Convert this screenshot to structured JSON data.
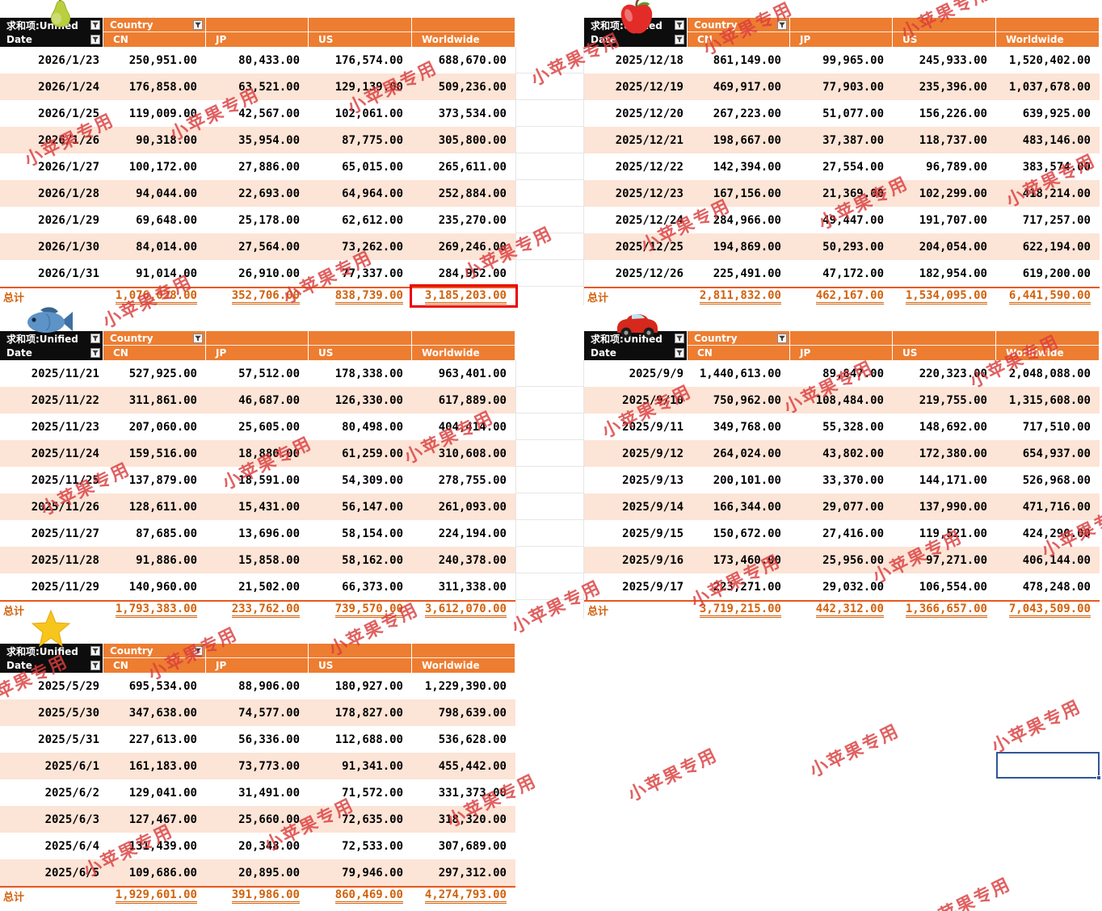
{
  "watermark": {
    "text": "小苹果专用",
    "color": "#DB3E3E"
  },
  "colors": {
    "header_orange": "#ED7D31",
    "header_black": "#0D0D0D",
    "row_band": "#FCE4D6",
    "total_text": "#D2620C",
    "highlight_box_border": "#EA0000",
    "active_cell_border": "#2F5597"
  },
  "pivot_header": {
    "value_field_label": "求和项:Unified",
    "row_field_label": "Date",
    "column_field_label": "Country",
    "columns": [
      "CN",
      "JP",
      "US",
      "Worldwide"
    ],
    "grand_total_label": "总计"
  },
  "tables": [
    {
      "icon": "pear",
      "rows": [
        {
          "date": "2026/1/23",
          "values": [
            "250,951.00",
            "80,433.00",
            "176,574.00",
            "688,670.00"
          ]
        },
        {
          "date": "2026/1/24",
          "values": [
            "176,858.00",
            "63,521.00",
            "129,139.00",
            "509,236.00"
          ]
        },
        {
          "date": "2026/1/25",
          "values": [
            "119,009.00",
            "42,567.00",
            "102,061.00",
            "373,534.00"
          ]
        },
        {
          "date": "2026/1/26",
          "values": [
            "90,318.00",
            "35,954.00",
            "87,775.00",
            "305,800.00"
          ]
        },
        {
          "date": "2026/1/27",
          "values": [
            "100,172.00",
            "27,886.00",
            "65,015.00",
            "265,611.00"
          ]
        },
        {
          "date": "2026/1/28",
          "values": [
            "94,044.00",
            "22,693.00",
            "64,964.00",
            "252,884.00"
          ]
        },
        {
          "date": "2026/1/29",
          "values": [
            "69,648.00",
            "25,178.00",
            "62,612.00",
            "235,270.00"
          ]
        },
        {
          "date": "2026/1/30",
          "values": [
            "84,014.00",
            "27,564.00",
            "73,262.00",
            "269,246.00"
          ]
        },
        {
          "date": "2026/1/31",
          "values": [
            "91,014.00",
            "26,910.00",
            "77,337.00",
            "284,952.00"
          ]
        }
      ],
      "totals": [
        "1,076,028.00",
        "352,706.00",
        "838,739.00",
        "3,185,203.00"
      ]
    },
    {
      "icon": "apple",
      "rows": [
        {
          "date": "2025/12/18",
          "values": [
            "861,149.00",
            "99,965.00",
            "245,933.00",
            "1,520,402.00"
          ]
        },
        {
          "date": "2025/12/19",
          "values": [
            "469,917.00",
            "77,903.00",
            "235,396.00",
            "1,037,678.00"
          ]
        },
        {
          "date": "2025/12/20",
          "values": [
            "267,223.00",
            "51,077.00",
            "156,226.00",
            "639,925.00"
          ]
        },
        {
          "date": "2025/12/21",
          "values": [
            "198,667.00",
            "37,387.00",
            "118,737.00",
            "483,146.00"
          ]
        },
        {
          "date": "2025/12/22",
          "values": [
            "142,394.00",
            "27,554.00",
            "96,789.00",
            "383,574.00"
          ]
        },
        {
          "date": "2025/12/23",
          "values": [
            "167,156.00",
            "21,369.00",
            "102,299.00",
            "418,214.00"
          ]
        },
        {
          "date": "2025/12/24",
          "values": [
            "284,966.00",
            "49,447.00",
            "191,707.00",
            "717,257.00"
          ]
        },
        {
          "date": "2025/12/25",
          "values": [
            "194,869.00",
            "50,293.00",
            "204,054.00",
            "622,194.00"
          ]
        },
        {
          "date": "2025/12/26",
          "values": [
            "225,491.00",
            "47,172.00",
            "182,954.00",
            "619,200.00"
          ]
        }
      ],
      "totals": [
        "2,811,832.00",
        "462,167.00",
        "1,534,095.00",
        "6,441,590.00"
      ]
    },
    {
      "icon": "fish",
      "rows": [
        {
          "date": "2025/11/21",
          "values": [
            "527,925.00",
            "57,512.00",
            "178,338.00",
            "963,401.00"
          ]
        },
        {
          "date": "2025/11/22",
          "values": [
            "311,861.00",
            "46,687.00",
            "126,330.00",
            "617,889.00"
          ]
        },
        {
          "date": "2025/11/23",
          "values": [
            "207,060.00",
            "25,605.00",
            "80,498.00",
            "404,414.00"
          ]
        },
        {
          "date": "2025/11/24",
          "values": [
            "159,516.00",
            "18,880.00",
            "61,259.00",
            "310,608.00"
          ]
        },
        {
          "date": "2025/11/25",
          "values": [
            "137,879.00",
            "18,591.00",
            "54,309.00",
            "278,755.00"
          ]
        },
        {
          "date": "2025/11/26",
          "values": [
            "128,611.00",
            "15,431.00",
            "56,147.00",
            "261,093.00"
          ]
        },
        {
          "date": "2025/11/27",
          "values": [
            "87,685.00",
            "13,696.00",
            "58,154.00",
            "224,194.00"
          ]
        },
        {
          "date": "2025/11/28",
          "values": [
            "91,886.00",
            "15,858.00",
            "58,162.00",
            "240,378.00"
          ]
        },
        {
          "date": "2025/11/29",
          "values": [
            "140,960.00",
            "21,502.00",
            "66,373.00",
            "311,338.00"
          ]
        }
      ],
      "totals": [
        "1,793,383.00",
        "233,762.00",
        "739,570.00",
        "3,612,070.00"
      ]
    },
    {
      "icon": "car",
      "rows": [
        {
          "date": "2025/9/9",
          "values": [
            "1,440,613.00",
            "89,847.00",
            "220,323.00",
            "2,048,088.00"
          ]
        },
        {
          "date": "2025/9/10",
          "values": [
            "750,962.00",
            "108,484.00",
            "219,755.00",
            "1,315,608.00"
          ]
        },
        {
          "date": "2025/9/11",
          "values": [
            "349,768.00",
            "55,328.00",
            "148,692.00",
            "717,510.00"
          ]
        },
        {
          "date": "2025/9/12",
          "values": [
            "264,024.00",
            "43,802.00",
            "172,380.00",
            "654,937.00"
          ]
        },
        {
          "date": "2025/9/13",
          "values": [
            "200,101.00",
            "33,370.00",
            "144,171.00",
            "526,968.00"
          ]
        },
        {
          "date": "2025/9/14",
          "values": [
            "166,344.00",
            "29,077.00",
            "137,990.00",
            "471,716.00"
          ]
        },
        {
          "date": "2025/9/15",
          "values": [
            "150,672.00",
            "27,416.00",
            "119,521.00",
            "424,290.00"
          ]
        },
        {
          "date": "2025/9/16",
          "values": [
            "173,460.00",
            "25,956.00",
            "97,271.00",
            "406,144.00"
          ]
        },
        {
          "date": "2025/9/17",
          "values": [
            "223,271.00",
            "29,032.00",
            "106,554.00",
            "478,248.00"
          ]
        }
      ],
      "totals": [
        "3,719,215.00",
        "442,312.00",
        "1,366,657.00",
        "7,043,509.00"
      ]
    },
    {
      "icon": "star",
      "rows": [
        {
          "date": "2025/5/29",
          "values": [
            "695,534.00",
            "88,906.00",
            "180,927.00",
            "1,229,390.00"
          ]
        },
        {
          "date": "2025/5/30",
          "values": [
            "347,638.00",
            "74,577.00",
            "178,827.00",
            "798,639.00"
          ]
        },
        {
          "date": "2025/5/31",
          "values": [
            "227,613.00",
            "56,336.00",
            "112,688.00",
            "536,628.00"
          ]
        },
        {
          "date": "2025/6/1",
          "values": [
            "161,183.00",
            "73,773.00",
            "91,341.00",
            "455,442.00"
          ]
        },
        {
          "date": "2025/6/2",
          "values": [
            "129,041.00",
            "31,491.00",
            "71,572.00",
            "331,373.00"
          ]
        },
        {
          "date": "2025/6/3",
          "values": [
            "127,467.00",
            "25,660.00",
            "72,635.00",
            "318,320.00"
          ]
        },
        {
          "date": "2025/6/4",
          "values": [
            "131,439.00",
            "20,348.00",
            "72,533.00",
            "307,689.00"
          ]
        },
        {
          "date": "2025/6/5",
          "values": [
            "109,686.00",
            "20,895.00",
            "79,946.00",
            "297,312.00"
          ]
        }
      ],
      "totals": [
        "1,929,601.00",
        "391,986.00",
        "860,469.00",
        "4,274,793.00"
      ]
    }
  ]
}
